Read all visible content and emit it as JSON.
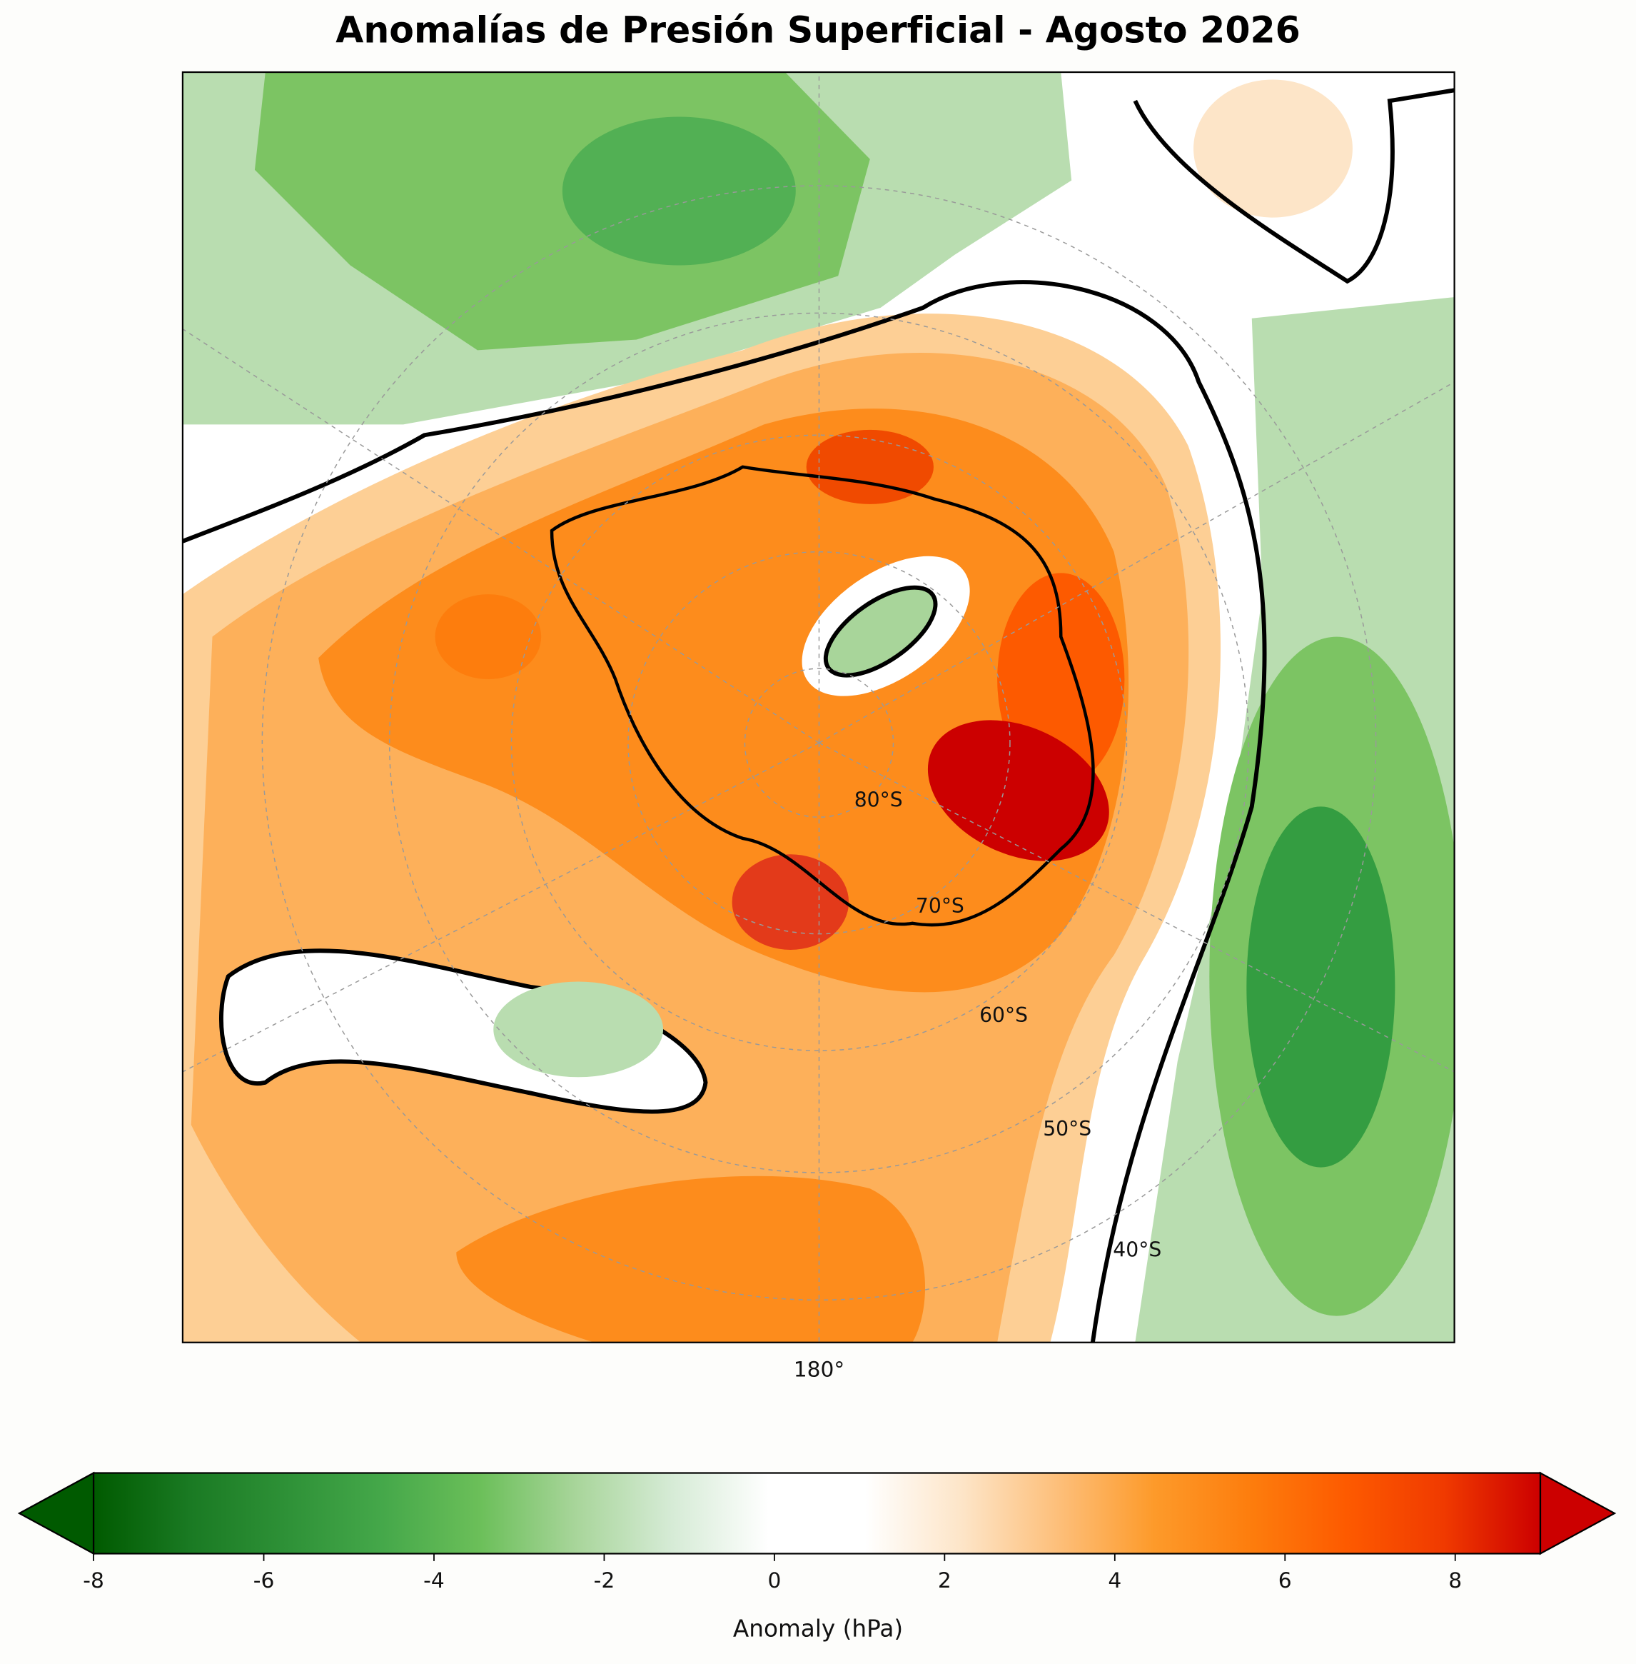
{
  "chart_data": {
    "type": "map",
    "title": "Anomalías de Presión Superficial - Agosto 2026",
    "map": {
      "lon_label": "180°",
      "lat_labels": [
        "80°S",
        "70°S",
        "60°S",
        "50°S",
        "40°S"
      ]
    },
    "colorbar": {
      "label": "Anomaly (hPa)",
      "lim": [
        -8,
        9
      ],
      "ticks": [
        -8,
        -6,
        -4,
        -2,
        0,
        2,
        4,
        6,
        8
      ],
      "colors": [
        "#005a00",
        "#1a7a23",
        "#2e9137",
        "#45a84a",
        "#6bbf59",
        "#a8d59a",
        "#d6ebd6",
        "#ffffff",
        "#ffffff",
        "#fde5c8",
        "#fdbf7a",
        "#fd9a2a",
        "#fd7d0d",
        "#fd5a00",
        "#f03a00",
        "#cc0000"
      ]
    }
  }
}
